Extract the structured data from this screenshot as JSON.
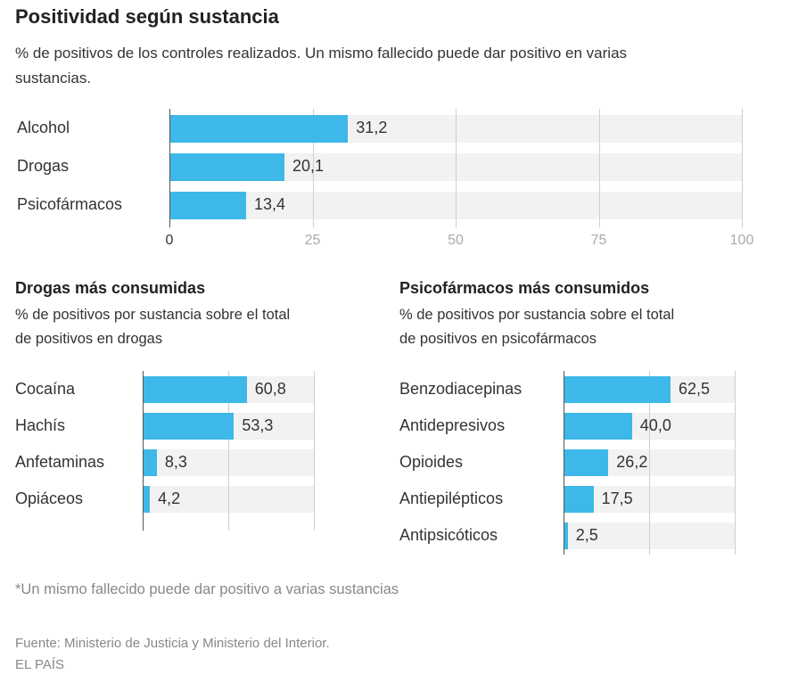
{
  "title": "Positividad según sustancia",
  "subtitle": "% de positivos de los controles realizados. Un mismo fallecido puede dar positivo en varias sustancias.",
  "colors": {
    "bar": "#3db8e8",
    "track": "#f2f2f2"
  },
  "chart_data": [
    {
      "type": "bar",
      "orientation": "horizontal",
      "title": "Positividad según sustancia",
      "categories": [
        "Alcohol",
        "Drogas",
        "Psicofármacos"
      ],
      "values": [
        31.2,
        20.1,
        13.4
      ],
      "value_labels": [
        "31,2",
        "20,1",
        "13,4"
      ],
      "xlim": [
        0,
        100
      ],
      "ticks": [
        0,
        25,
        50,
        75,
        100
      ],
      "tick_labels": [
        "0",
        "25",
        "50",
        "75",
        "100"
      ]
    },
    {
      "type": "bar",
      "orientation": "horizontal",
      "title": "Drogas más consumidas",
      "subtitle": "% de positivos por sustancia sobre el total de positivos en drogas",
      "categories": [
        "Cocaína",
        "Hachís",
        "Anfetaminas",
        "Opiáceos"
      ],
      "values": [
        60.8,
        53.3,
        8.3,
        4.2
      ],
      "value_labels": [
        "60,8",
        "53,3",
        "8,3",
        "4,2"
      ],
      "xlim": [
        0,
        100
      ],
      "gridlines": [
        50,
        100
      ]
    },
    {
      "type": "bar",
      "orientation": "horizontal",
      "title": "Psicofármacos más consumidos",
      "subtitle": "% de positivos por sustancia sobre el total de positivos en psicofármacos",
      "categories": [
        "Benzodiacepinas",
        "Antidepresivos",
        "Opioides",
        "Antiepilépticos",
        "Antipsicóticos"
      ],
      "values": [
        62.5,
        40.0,
        26.2,
        17.5,
        2.5
      ],
      "value_labels": [
        "62,5",
        "40,0",
        "26,2",
        "17,5",
        "2,5"
      ],
      "xlim": [
        0,
        100
      ],
      "gridlines": [
        50,
        100
      ]
    }
  ],
  "footnote": "*Un mismo fallecido puede dar positivo a varias sustancias",
  "source": "Fuente: Ministerio de Justicia y Ministerio del Interior.",
  "publisher": "EL PAÍS"
}
